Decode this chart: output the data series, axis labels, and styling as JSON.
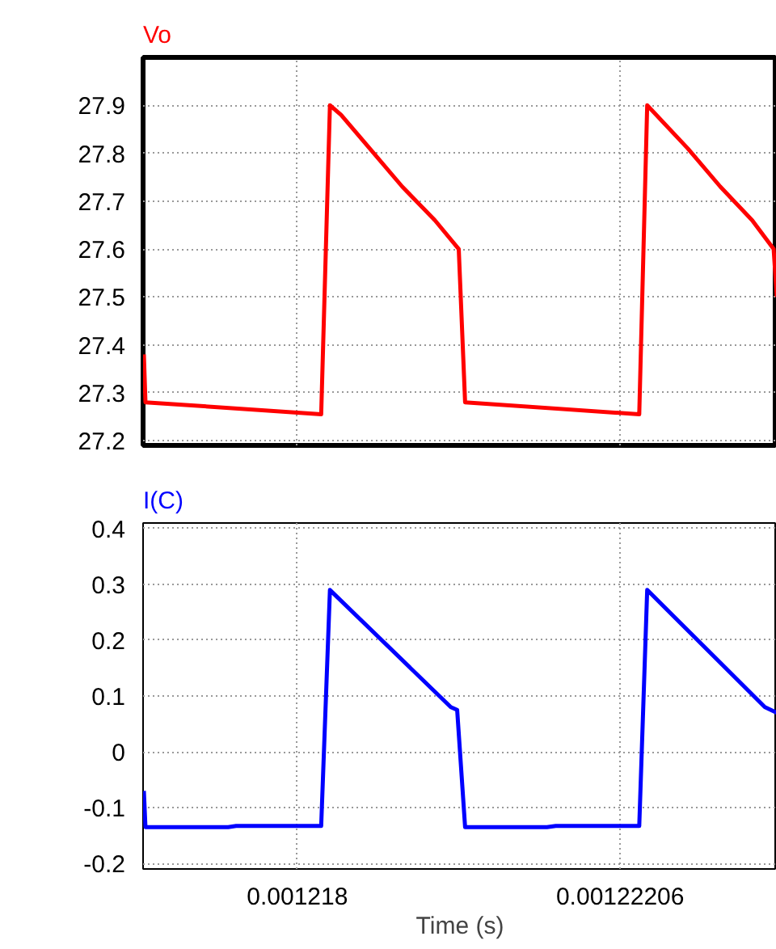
{
  "chart_data": [
    {
      "type": "line",
      "xlim": [
        0.00121606,
        0.00122403
      ],
      "ylim": [
        27.19,
        28.0
      ],
      "xticks": [
        {
          "value": 0.001218,
          "label": null
        },
        {
          "value": 0.00122206,
          "label": null
        }
      ],
      "yticks": [
        27.2,
        27.3,
        27.4,
        27.5,
        27.6,
        27.7,
        27.8,
        27.9
      ],
      "tick_labels": "y",
      "grid": true,
      "x": [
        0.00121607,
        0.00121609,
        0.0012183,
        0.00121841,
        0.00121855,
        0.00121891,
        0.00121932,
        0.00121973,
        0.00122003,
        0.00122011,
        0.0012223,
        0.0012224,
        0.00122291,
        0.00122332,
        0.00122372,
        0.00122399,
        0.00122403
      ],
      "series": [
        {
          "name": "Vo",
          "color": "#ff0000",
          "values": [
            27.38,
            27.28,
            27.255,
            27.9,
            27.88,
            27.81,
            27.73,
            27.66,
            27.6,
            27.28,
            27.255,
            27.9,
            27.81,
            27.73,
            27.66,
            27.6,
            27.5
          ]
        }
      ]
    },
    {
      "type": "line",
      "xlim": [
        0.00121606,
        0.00122403
      ],
      "ylim": [
        -0.21,
        0.41
      ],
      "xticks": [
        0.001218,
        0.00122206
      ],
      "yticks": [
        -0.2,
        -0.1,
        0,
        0.1,
        0.2,
        0.3,
        0.4
      ],
      "xlabel": "Time (s)",
      "grid": true,
      "x": [
        0.00121607,
        0.00121609,
        0.00121713,
        0.00121723,
        0.0012183,
        0.00121841,
        0.00121993,
        0.00122001,
        0.00122011,
        0.00122114,
        0.00122125,
        0.0012223,
        0.0012224,
        0.00122388,
        0.00122403
      ],
      "series": [
        {
          "name": "I(C)",
          "color": "#0000ff",
          "values": [
            -0.07,
            -0.135,
            -0.135,
            -0.133,
            -0.133,
            0.29,
            0.08,
            0.075,
            -0.135,
            -0.135,
            -0.133,
            -0.133,
            0.29,
            0.08,
            0.07
          ]
        }
      ]
    }
  ]
}
